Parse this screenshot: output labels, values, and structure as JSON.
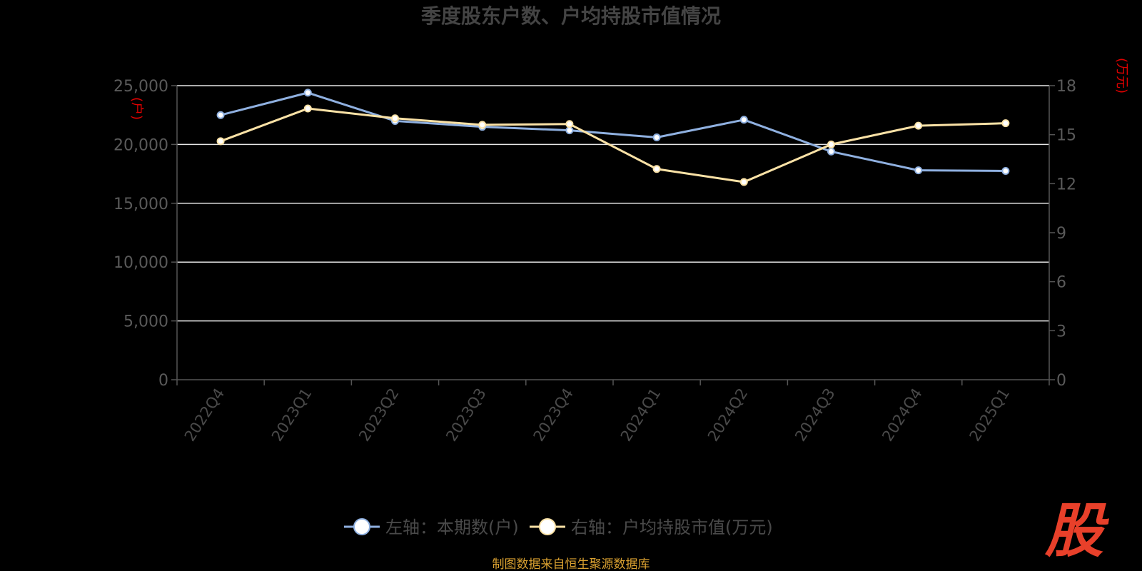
{
  "chart_data": {
    "type": "line",
    "title": "季度股东户数、户均持股市值情况",
    "categories": [
      "2022Q4",
      "2023Q1",
      "2023Q2",
      "2023Q3",
      "2023Q4",
      "2024Q1",
      "2024Q2",
      "2024Q3",
      "2024Q4",
      "2025Q1"
    ],
    "left_axis": {
      "unit": "(户)",
      "ylim": [
        0,
        25000
      ],
      "ticks": [
        "0",
        "5,000",
        "10,000",
        "15,000",
        "20,000",
        "25,000"
      ],
      "tick_values": [
        0,
        5000,
        10000,
        15000,
        20000,
        25000
      ]
    },
    "right_axis": {
      "unit": "(万元)",
      "ylim": [
        0,
        18
      ],
      "ticks": [
        "0",
        "3",
        "6",
        "9",
        "12",
        "15",
        "18"
      ],
      "tick_values": [
        0,
        3,
        6,
        9,
        12,
        15,
        18
      ]
    },
    "series": [
      {
        "name": "左轴：本期数(户)",
        "axis": "left",
        "color": "#8fb0e0",
        "values": [
          22500,
          24400,
          22000,
          21500,
          21200,
          20600,
          22100,
          19400,
          17800,
          17750
        ]
      },
      {
        "name": "右轴：户均持股市值(万元)",
        "axis": "right",
        "color": "#fbe2a6",
        "values": [
          14.6,
          16.6,
          16.0,
          15.6,
          15.65,
          12.9,
          12.1,
          14.4,
          15.55,
          15.7
        ]
      }
    ],
    "grid": true,
    "legend_position": "bottom"
  },
  "footer": {
    "source": "制图数据来自恒生聚源数据库",
    "logo_text": "股"
  }
}
